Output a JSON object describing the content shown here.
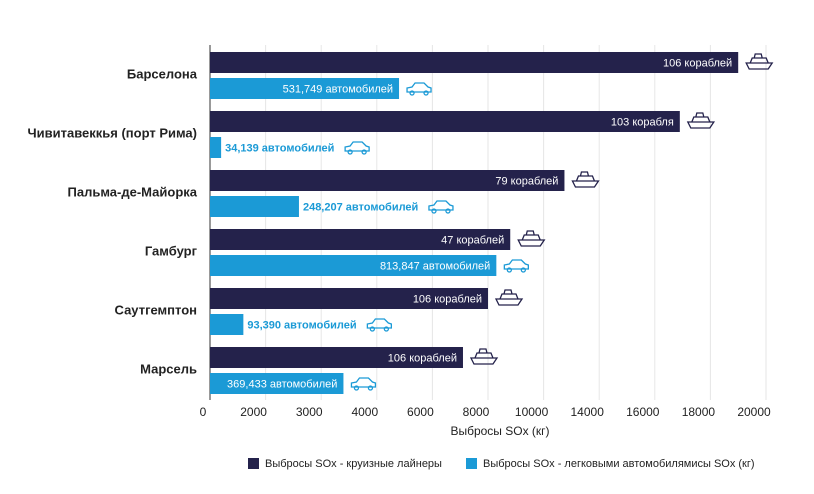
{
  "chart_data": {
    "type": "bar",
    "orientation": "horizontal",
    "xscale": "tick-spaced",
    "categories": [
      "Барселона",
      "Чивитавеккья (порт Рима)",
      "Пальма-де-Майорка",
      "Гамбург",
      "Саутгемптон",
      "Марсель"
    ],
    "series": [
      {
        "name": "Выбросы SOx - круизные лайнеры",
        "color": "#24224b",
        "values": [
          19000,
          16900,
          11500,
          8800,
          8000,
          7100
        ],
        "bar_labels": [
          "106 кораблей",
          "103 корабля",
          "79 кораблей",
          "47 кораблей",
          "106 кораблей",
          "106 кораблей"
        ]
      },
      {
        "name": "Выбросы SOx - легковыми автомобилямисы SOx (кг)",
        "color": "#1b9ad6",
        "values": [
          4800,
          400,
          2600,
          8300,
          1200,
          3400
        ],
        "bar_labels": [
          "531,749 автомобилей",
          "34,139 автомобилей",
          "248,207 автомобилей",
          "813,847 автомобилей",
          "93,390 автомобилей",
          "369,433 автомобилей"
        ]
      }
    ],
    "x_label": "Выбросы SOx (кг)",
    "xlim": [
      0,
      20000
    ],
    "xticks": [
      0,
      2000,
      3000,
      4000,
      6000,
      8000,
      10000,
      14000,
      16000,
      18000,
      20000
    ],
    "grid": true
  }
}
